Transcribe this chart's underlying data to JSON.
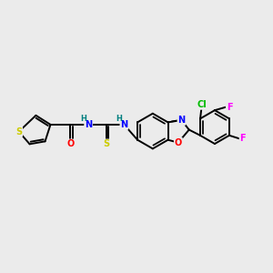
{
  "background_color": "#ebebeb",
  "figsize": [
    3.0,
    3.0
  ],
  "dpi": 100,
  "atom_colors": {
    "S": "#cccc00",
    "O": "#ff0000",
    "N": "#0000ff",
    "H": "#008080",
    "C": "#000000",
    "Cl": "#00bb00",
    "F": "#ff00ff"
  },
  "bond_color": "#000000",
  "bond_width": 1.4,
  "font_size": 7.0
}
